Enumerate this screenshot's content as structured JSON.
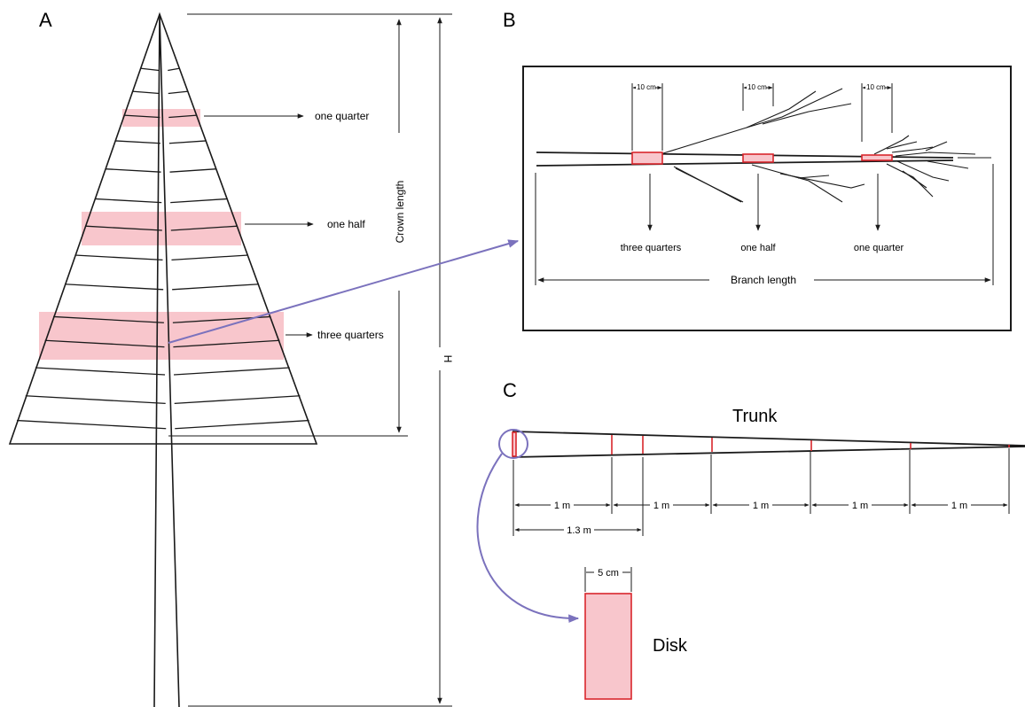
{
  "panels": {
    "a": "A",
    "b": "B",
    "c": "C"
  },
  "tree": {
    "crown_label": "Crown length",
    "height_label": "H",
    "positions": [
      "one quarter",
      "one half",
      "three quarters"
    ]
  },
  "branch": {
    "segment_width": "10 cm",
    "positions": [
      "three quarters",
      "one half",
      "one quarter"
    ],
    "length_label": "Branch length"
  },
  "trunk": {
    "title": "Trunk",
    "segments": [
      "1 m",
      "1 m",
      "1 m",
      "1 m",
      "1 m"
    ],
    "first_disk_height": "1.3 m",
    "disk_thickness": "5 cm",
    "disk_label": "Disk"
  },
  "colors": {
    "sample_fill": "#f8c6cc",
    "sample_outline": "#d9262c",
    "connector": "#7b72bd"
  }
}
